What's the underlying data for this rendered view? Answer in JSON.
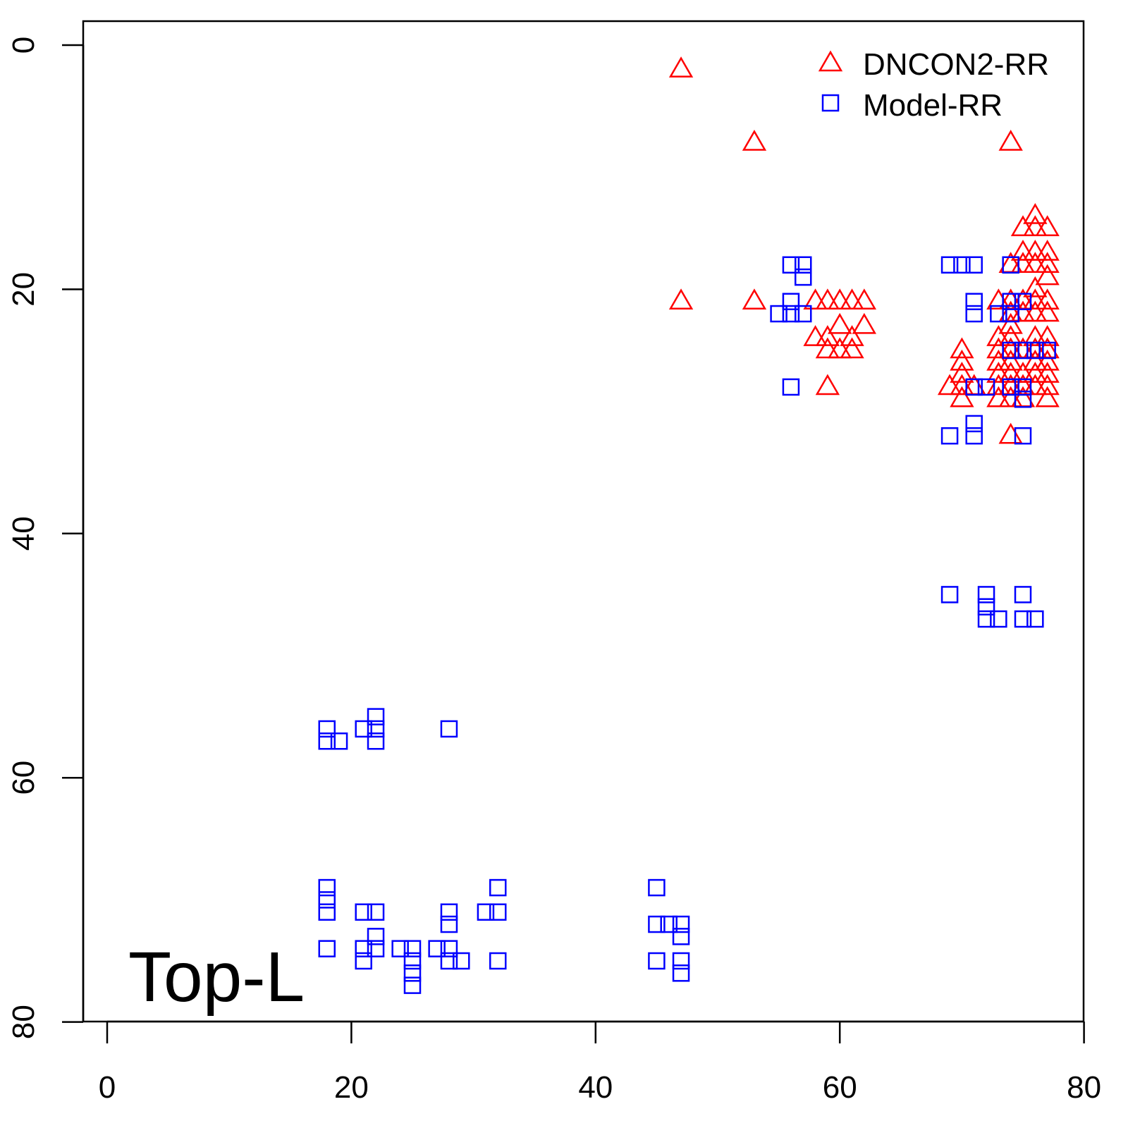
{
  "chart_data": {
    "type": "scatter",
    "title": "",
    "annotation": "Top-L",
    "xlabel": "",
    "ylabel": "",
    "xlim": [
      -2,
      80
    ],
    "ylim": [
      80,
      -2
    ],
    "y_inverted": true,
    "xticks": [
      0,
      20,
      40,
      60,
      80
    ],
    "yticks": [
      0,
      20,
      40,
      60,
      80
    ],
    "legend_position": "top-right",
    "series": [
      {
        "name": "DNCON2-RR",
        "marker": "triangle",
        "color": "#ff0000",
        "points": [
          [
            47,
            2
          ],
          [
            47,
            21
          ],
          [
            53,
            8
          ],
          [
            53,
            21
          ],
          [
            74,
            8
          ],
          [
            58,
            21
          ],
          [
            59,
            21
          ],
          [
            60,
            21
          ],
          [
            61,
            21
          ],
          [
            62,
            21
          ],
          [
            60,
            23
          ],
          [
            62,
            23
          ],
          [
            58,
            24
          ],
          [
            59,
            24
          ],
          [
            61,
            24
          ],
          [
            59,
            25
          ],
          [
            60,
            25
          ],
          [
            61,
            25
          ],
          [
            59,
            28
          ],
          [
            76,
            14
          ],
          [
            75,
            15
          ],
          [
            76,
            15
          ],
          [
            77,
            15
          ],
          [
            75,
            17
          ],
          [
            76,
            17
          ],
          [
            77,
            17
          ],
          [
            74,
            18
          ],
          [
            75,
            18
          ],
          [
            76,
            18
          ],
          [
            77,
            18
          ],
          [
            77,
            19
          ],
          [
            76,
            20
          ],
          [
            73,
            21
          ],
          [
            74,
            21
          ],
          [
            75,
            21
          ],
          [
            76,
            21
          ],
          [
            77,
            21
          ],
          [
            74,
            22
          ],
          [
            75,
            22
          ],
          [
            76,
            22
          ],
          [
            77,
            22
          ],
          [
            74,
            23
          ],
          [
            73,
            24
          ],
          [
            74,
            24
          ],
          [
            76,
            24
          ],
          [
            77,
            24
          ],
          [
            70,
            25
          ],
          [
            73,
            25
          ],
          [
            74,
            25
          ],
          [
            75,
            25
          ],
          [
            76,
            25
          ],
          [
            77,
            25
          ],
          [
            70,
            26
          ],
          [
            73,
            26
          ],
          [
            74,
            26
          ],
          [
            76,
            26
          ],
          [
            77,
            26
          ],
          [
            70,
            27
          ],
          [
            73,
            27
          ],
          [
            74,
            27
          ],
          [
            75,
            27
          ],
          [
            76,
            27
          ],
          [
            77,
            27
          ],
          [
            69,
            28
          ],
          [
            70,
            28
          ],
          [
            71,
            28
          ],
          [
            73,
            28
          ],
          [
            74,
            28
          ],
          [
            75,
            28
          ],
          [
            76,
            28
          ],
          [
            77,
            28
          ],
          [
            70,
            29
          ],
          [
            73,
            29
          ],
          [
            74,
            29
          ],
          [
            75,
            29
          ],
          [
            77,
            29
          ],
          [
            74,
            32
          ]
        ]
      },
      {
        "name": "Model-RR",
        "marker": "square",
        "color": "#0000ff",
        "points": [
          [
            56,
            18
          ],
          [
            57,
            18
          ],
          [
            57,
            19
          ],
          [
            56,
            21
          ],
          [
            55,
            22
          ],
          [
            56,
            22
          ],
          [
            57,
            22
          ],
          [
            56,
            28
          ],
          [
            69,
            18
          ],
          [
            70,
            18
          ],
          [
            71,
            18
          ],
          [
            74,
            18
          ],
          [
            71,
            21
          ],
          [
            71,
            22
          ],
          [
            73,
            22
          ],
          [
            74,
            21
          ],
          [
            74,
            22
          ],
          [
            75,
            21
          ],
          [
            74,
            25
          ],
          [
            75,
            25
          ],
          [
            76,
            25
          ],
          [
            77,
            25
          ],
          [
            71,
            28
          ],
          [
            72,
            28
          ],
          [
            74,
            28
          ],
          [
            75,
            28
          ],
          [
            75,
            29
          ],
          [
            69,
            32
          ],
          [
            71,
            31
          ],
          [
            71,
            32
          ],
          [
            75,
            32
          ],
          [
            69,
            45
          ],
          [
            72,
            45
          ],
          [
            75,
            45
          ],
          [
            72,
            46
          ],
          [
            72,
            47
          ],
          [
            73,
            47
          ],
          [
            75,
            47
          ],
          [
            76,
            47
          ],
          [
            18,
            56
          ],
          [
            21,
            56
          ],
          [
            22,
            55
          ],
          [
            22,
            56
          ],
          [
            28,
            56
          ],
          [
            18,
            57
          ],
          [
            19,
            57
          ],
          [
            22,
            57
          ],
          [
            18,
            69
          ],
          [
            18,
            70
          ],
          [
            18,
            71
          ],
          [
            32,
            69
          ],
          [
            45,
            69
          ],
          [
            21,
            71
          ],
          [
            22,
            71
          ],
          [
            28,
            71
          ],
          [
            28,
            72
          ],
          [
            31,
            71
          ],
          [
            32,
            71
          ],
          [
            45,
            72
          ],
          [
            46,
            72
          ],
          [
            47,
            72
          ],
          [
            47,
            73
          ],
          [
            22,
            73
          ],
          [
            18,
            74
          ],
          [
            21,
            74
          ],
          [
            22,
            74
          ],
          [
            24,
            74
          ],
          [
            25,
            74
          ],
          [
            27,
            74
          ],
          [
            28,
            74
          ],
          [
            21,
            75
          ],
          [
            25,
            75
          ],
          [
            28,
            75
          ],
          [
            29,
            75
          ],
          [
            32,
            75
          ],
          [
            45,
            75
          ],
          [
            47,
            75
          ],
          [
            25,
            76
          ],
          [
            47,
            76
          ],
          [
            25,
            77
          ]
        ]
      }
    ]
  }
}
